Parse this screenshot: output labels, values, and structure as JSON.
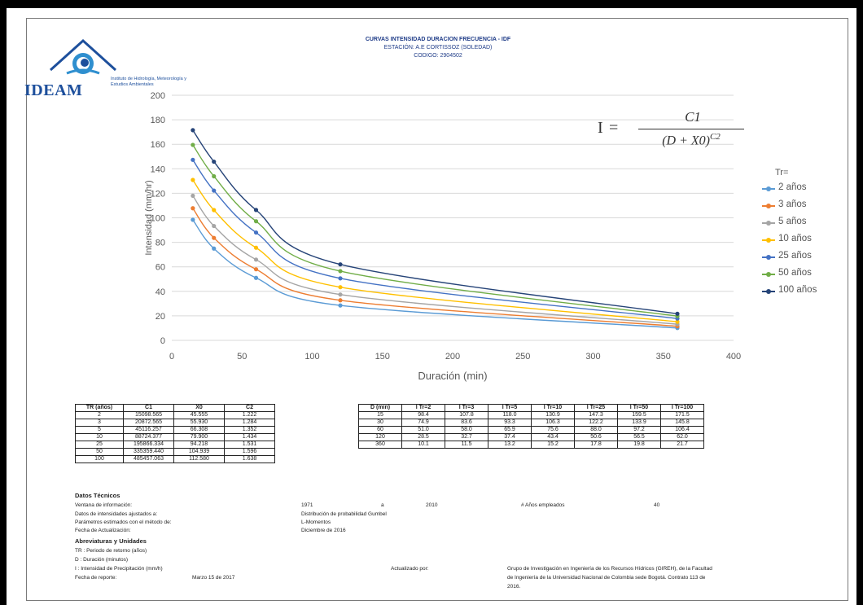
{
  "header": {
    "title": "CURVAS INTENSIDAD DURACION FRECUENCIA - IDF",
    "station": "ESTACIÓN: A.E CORTISSOZ (SOLEDAD)",
    "code": "CODIGO: 2904502"
  },
  "logo": {
    "word": "IDEAM",
    "subtitle": "Instituto de Hidrología, Meteorología y Estudios Ambientales"
  },
  "formula": {
    "lhs": "I",
    "eq": "=",
    "num": "C1",
    "den_base": "(D + X0)",
    "den_exp": "C2"
  },
  "colors": {
    "axis": "#d9d9d9",
    "tick_text": "#595959",
    "series": [
      "#5b9bd5",
      "#ed7d31",
      "#a5a5a5",
      "#ffc000",
      "#4472c4",
      "#70ad47",
      "#264478"
    ]
  },
  "chart_data": {
    "type": "line",
    "title": "",
    "xlabel": "Duración (min)",
    "ylabel": "Intensidad (mm/hr)",
    "xlim": [
      0,
      400
    ],
    "ylim": [
      0,
      200
    ],
    "xticks": [
      0,
      50,
      100,
      150,
      200,
      250,
      300,
      350,
      400
    ],
    "yticks": [
      0,
      20,
      40,
      60,
      80,
      100,
      120,
      140,
      160,
      180,
      200
    ],
    "x": [
      15,
      30,
      60,
      120,
      360
    ],
    "legend_title": "Tr=",
    "legend_position": "right",
    "series": [
      {
        "name": "2 años",
        "values": [
          98.4,
          74.9,
          51.0,
          28.5,
          10.1
        ]
      },
      {
        "name": "3 años",
        "values": [
          107.8,
          83.6,
          58.0,
          32.7,
          11.5
        ]
      },
      {
        "name": "5 años",
        "values": [
          118.0,
          93.3,
          65.9,
          37.4,
          13.2
        ]
      },
      {
        "name": "10 años",
        "values": [
          130.9,
          106.3,
          75.6,
          43.4,
          15.2
        ]
      },
      {
        "name": "25 años",
        "values": [
          147.3,
          122.2,
          88.0,
          50.6,
          17.8
        ]
      },
      {
        "name": "50 años",
        "values": [
          159.5,
          133.9,
          97.2,
          56.5,
          19.8
        ]
      },
      {
        "name": "100 años",
        "values": [
          171.5,
          145.8,
          106.4,
          62.0,
          21.7
        ]
      }
    ]
  },
  "params_table": {
    "headers": [
      "TR (años)",
      "C1",
      "X0",
      "C2"
    ],
    "rows": [
      [
        "2",
        "15098.565",
        "45.555",
        "1.222"
      ],
      [
        "3",
        "20872.565",
        "55.930",
        "1.284"
      ],
      [
        "5",
        "45116.257",
        "66.308",
        "1.352"
      ],
      [
        "10",
        "88724.377",
        "79.900",
        "1.434"
      ],
      [
        "25",
        "195866.334",
        "94.218",
        "1.531"
      ],
      [
        "50",
        "335359.440",
        "104.939",
        "1.596"
      ],
      [
        "100",
        "485457.063",
        "112.580",
        "1.638"
      ]
    ]
  },
  "intensity_table": {
    "headers": [
      "D (min)",
      "I Tr=2",
      "I Tr=3",
      "I Tr=5",
      "I Tr=10",
      "I Tr=25",
      "I Tr=50",
      "I Tr=100"
    ],
    "rows": [
      [
        "15",
        "98.4",
        "107.8",
        "118.0",
        "130.9",
        "147.3",
        "159.5",
        "171.5"
      ],
      [
        "30",
        "74.9",
        "83.6",
        "93.3",
        "106.3",
        "122.2",
        "133.9",
        "145.8"
      ],
      [
        "60",
        "51.0",
        "58.0",
        "65.9",
        "75.6",
        "88.0",
        "97.2",
        "106.4"
      ],
      [
        "120",
        "28.5",
        "32.7",
        "37.4",
        "43.4",
        "50.6",
        "56.5",
        "62.0"
      ],
      [
        "360",
        "10.1",
        "11.5",
        "13.2",
        "15.2",
        "17.8",
        "19.8",
        "21.7"
      ]
    ]
  },
  "info": {
    "tech_title": "Datos Técnicos",
    "window_label": "Ventana de información:",
    "window_from": "1971",
    "window_sep": "a",
    "window_to": "2010",
    "years_label": "# Años empleados",
    "years_value": "40",
    "fit_label": "Datos de intensidades ajustados a:",
    "fit_value": "Distribución de probabilidad Gumbel",
    "method_label": "Parámetros estimados con el método de:",
    "method_value": "L-Momentos",
    "update_label": "Fecha de Actualización:",
    "update_value": "Diciembre de 2016",
    "abbr_title": "Abreviaturas y Unidades",
    "abbr_tr": "TR : Periodo de retorno (años)",
    "abbr_d": "D : Duración (minutos)",
    "abbr_i": "I : Intensidad de Precipitación (mm/h)",
    "updated_by_label": "Actualizado por:",
    "updated_by_value_1": "Grupo de Investigación en Ingeniería de los Recursos Hídricos (GIREH), de la Facultad",
    "updated_by_value_2": "de Ingeniería de la Universidad Nacional de Colombia sede Bogotá. Contrato 113 de",
    "updated_by_value_3": "2016.",
    "report_label": "Fecha de reporte:",
    "report_value": "Marzo 15 de 2017"
  }
}
